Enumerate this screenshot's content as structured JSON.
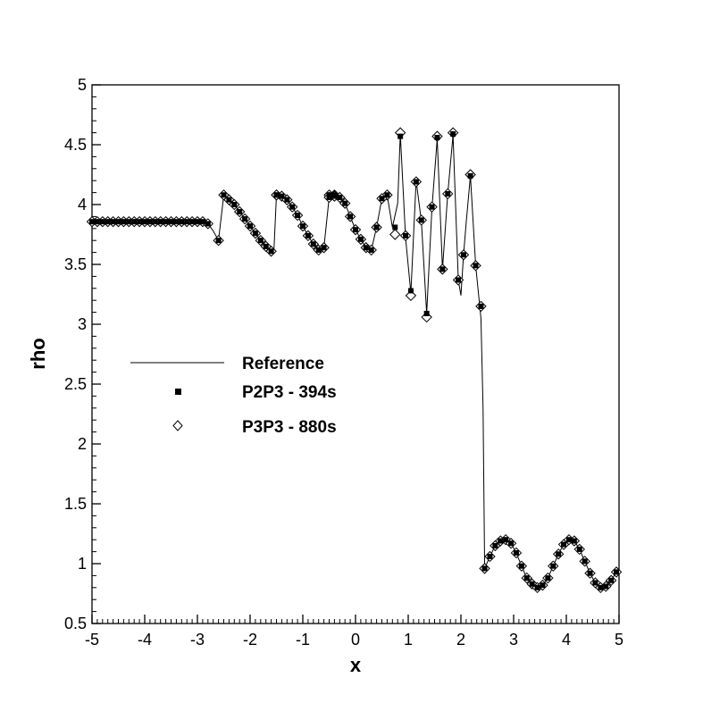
{
  "chart_data": {
    "type": "line",
    "title": "",
    "xlabel": "x",
    "ylabel": "rho",
    "xlim": [
      -5,
      5
    ],
    "ylim": [
      0.5,
      5
    ],
    "xticks": [
      -5,
      -4,
      -3,
      -2,
      -1,
      0,
      1,
      2,
      3,
      4,
      5
    ],
    "yticks": [
      0.5,
      1,
      1.5,
      2,
      2.5,
      3,
      3.5,
      4,
      4.5,
      5
    ],
    "x_minor_step": 0.1,
    "y_minor_step": 0.1,
    "grid": false,
    "legend_position": "center-left",
    "series": [
      {
        "name": "Reference",
        "style": "line",
        "color": "#000000",
        "points": [
          [
            -5.0,
            3.857
          ],
          [
            -2.9,
            3.857
          ],
          [
            -2.8,
            3.84
          ],
          [
            -2.7,
            3.78
          ],
          [
            -2.6,
            3.7
          ],
          [
            -2.5,
            4.08
          ],
          [
            -2.4,
            4.04
          ],
          [
            -2.3,
            4.0
          ],
          [
            -2.2,
            3.94
          ],
          [
            -2.1,
            3.88
          ],
          [
            -2.0,
            3.82
          ],
          [
            -1.9,
            3.76
          ],
          [
            -1.8,
            3.7
          ],
          [
            -1.7,
            3.65
          ],
          [
            -1.6,
            3.61
          ],
          [
            -1.55,
            3.6
          ],
          [
            -1.5,
            4.08
          ],
          [
            -1.4,
            4.07
          ],
          [
            -1.3,
            4.04
          ],
          [
            -1.2,
            3.98
          ],
          [
            -1.1,
            3.91
          ],
          [
            -1.0,
            3.82
          ],
          [
            -0.9,
            3.74
          ],
          [
            -0.8,
            3.67
          ],
          [
            -0.7,
            3.62
          ],
          [
            -0.6,
            3.64
          ],
          [
            -0.5,
            4.06
          ],
          [
            -0.4,
            4.07
          ],
          [
            -0.3,
            4.06
          ],
          [
            -0.2,
            4.01
          ],
          [
            -0.1,
            3.9
          ],
          [
            0.0,
            3.79
          ],
          [
            0.1,
            3.71
          ],
          [
            0.2,
            3.64
          ],
          [
            0.3,
            3.62
          ],
          [
            0.4,
            3.81
          ],
          [
            0.5,
            4.05
          ],
          [
            0.6,
            4.08
          ],
          [
            0.7,
            3.81
          ],
          [
            0.8,
            4.01
          ],
          [
            0.85,
            4.59
          ],
          [
            0.95,
            3.72
          ],
          [
            1.05,
            3.26
          ],
          [
            1.15,
            4.2
          ],
          [
            1.25,
            3.86
          ],
          [
            1.35,
            3.09
          ],
          [
            1.45,
            3.97
          ],
          [
            1.55,
            4.55
          ],
          [
            1.65,
            3.46
          ],
          [
            1.75,
            4.09
          ],
          [
            1.85,
            4.58
          ],
          [
            1.95,
            3.37
          ],
          [
            2.0,
            3.24
          ],
          [
            2.05,
            3.58
          ],
          [
            2.1,
            3.85
          ],
          [
            2.18,
            4.24
          ],
          [
            2.28,
            3.49
          ],
          [
            2.38,
            3.05
          ],
          [
            2.42,
            2.3
          ],
          [
            2.45,
            0.96
          ],
          [
            2.55,
            1.06
          ],
          [
            2.65,
            1.15
          ],
          [
            2.75,
            1.19
          ],
          [
            2.85,
            1.2
          ],
          [
            2.95,
            1.17
          ],
          [
            3.05,
            1.09
          ],
          [
            3.15,
            0.98
          ],
          [
            3.25,
            0.88
          ],
          [
            3.35,
            0.83
          ],
          [
            3.45,
            0.8
          ],
          [
            3.55,
            0.82
          ],
          [
            3.65,
            0.88
          ],
          [
            3.75,
            0.98
          ],
          [
            3.85,
            1.08
          ],
          [
            3.95,
            1.16
          ],
          [
            4.05,
            1.2
          ],
          [
            4.15,
            1.19
          ],
          [
            4.25,
            1.12
          ],
          [
            4.35,
            1.02
          ],
          [
            4.45,
            0.92
          ],
          [
            4.55,
            0.84
          ],
          [
            4.65,
            0.8
          ],
          [
            4.75,
            0.81
          ],
          [
            4.85,
            0.86
          ],
          [
            4.95,
            0.93
          ],
          [
            5.0,
            0.96
          ]
        ]
      },
      {
        "name": "P2P3 - 394s",
        "style": "filled-square",
        "color": "#000000",
        "points": [
          [
            -2.6,
            3.7
          ],
          [
            -2.5,
            4.08
          ],
          [
            -1.5,
            4.08
          ],
          [
            -0.5,
            4.08
          ],
          [
            -0.4,
            4.08
          ],
          [
            0.6,
            4.08
          ],
          [
            0.75,
            3.81
          ],
          [
            0.85,
            4.57
          ],
          [
            0.95,
            3.74
          ],
          [
            1.05,
            3.28
          ],
          [
            1.15,
            4.19
          ],
          [
            1.25,
            3.87
          ],
          [
            1.35,
            3.09
          ],
          [
            1.45,
            3.98
          ],
          [
            1.55,
            4.56
          ],
          [
            1.65,
            3.46
          ],
          [
            1.75,
            4.09
          ],
          [
            1.85,
            4.59
          ],
          [
            1.95,
            3.37
          ],
          [
            2.05,
            3.58
          ],
          [
            2.18,
            4.24
          ],
          [
            2.28,
            3.49
          ],
          [
            2.38,
            3.15
          ],
          [
            2.45,
            0.96
          ]
        ]
      },
      {
        "name": "P3P3 - 880s",
        "style": "open-diamond",
        "color": "#000000",
        "points": [
          [
            -2.6,
            3.7
          ],
          [
            -2.5,
            4.08
          ],
          [
            -1.5,
            4.08
          ],
          [
            -0.5,
            4.08
          ],
          [
            -0.4,
            4.08
          ],
          [
            0.6,
            4.08
          ],
          [
            0.75,
            3.75
          ],
          [
            0.85,
            4.6
          ],
          [
            0.95,
            3.74
          ],
          [
            1.05,
            3.24
          ],
          [
            1.15,
            4.19
          ],
          [
            1.25,
            3.87
          ],
          [
            1.35,
            3.06
          ],
          [
            1.45,
            3.98
          ],
          [
            1.55,
            4.57
          ],
          [
            1.65,
            3.46
          ],
          [
            1.75,
            4.09
          ],
          [
            1.85,
            4.6
          ],
          [
            1.95,
            3.37
          ],
          [
            2.05,
            3.58
          ],
          [
            2.18,
            4.25
          ],
          [
            2.28,
            3.49
          ],
          [
            2.38,
            3.15
          ],
          [
            2.45,
            0.96
          ]
        ]
      }
    ]
  }
}
